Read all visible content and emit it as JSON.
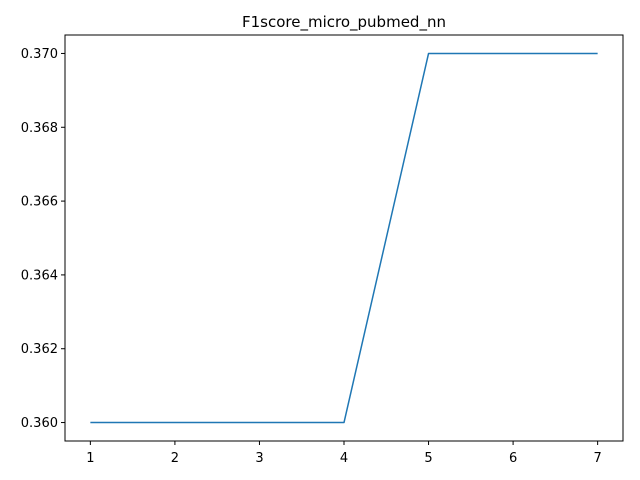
{
  "chart_data": {
    "type": "line",
    "title": "F1score_micro_pubmed_nn",
    "xlabel": "",
    "ylabel": "",
    "x": [
      1,
      2,
      3,
      4,
      5,
      6,
      7
    ],
    "series": [
      {
        "values": [
          0.36,
          0.36,
          0.36,
          0.36,
          0.37,
          0.37,
          0.37
        ],
        "color": "#1f77b4"
      }
    ],
    "xlim": [
      0.7,
      7.3
    ],
    "ylim": [
      0.3595,
      0.3705
    ],
    "xticks": [
      1,
      2,
      3,
      4,
      5,
      6,
      7
    ],
    "xtick_labels": [
      "1",
      "2",
      "3",
      "4",
      "5",
      "6",
      "7"
    ],
    "yticks": [
      0.36,
      0.362,
      0.364,
      0.366,
      0.368,
      0.37
    ],
    "ytick_labels": [
      "0.360",
      "0.362",
      "0.364",
      "0.366",
      "0.368",
      "0.370"
    ],
    "grid": false,
    "legend": "none"
  }
}
